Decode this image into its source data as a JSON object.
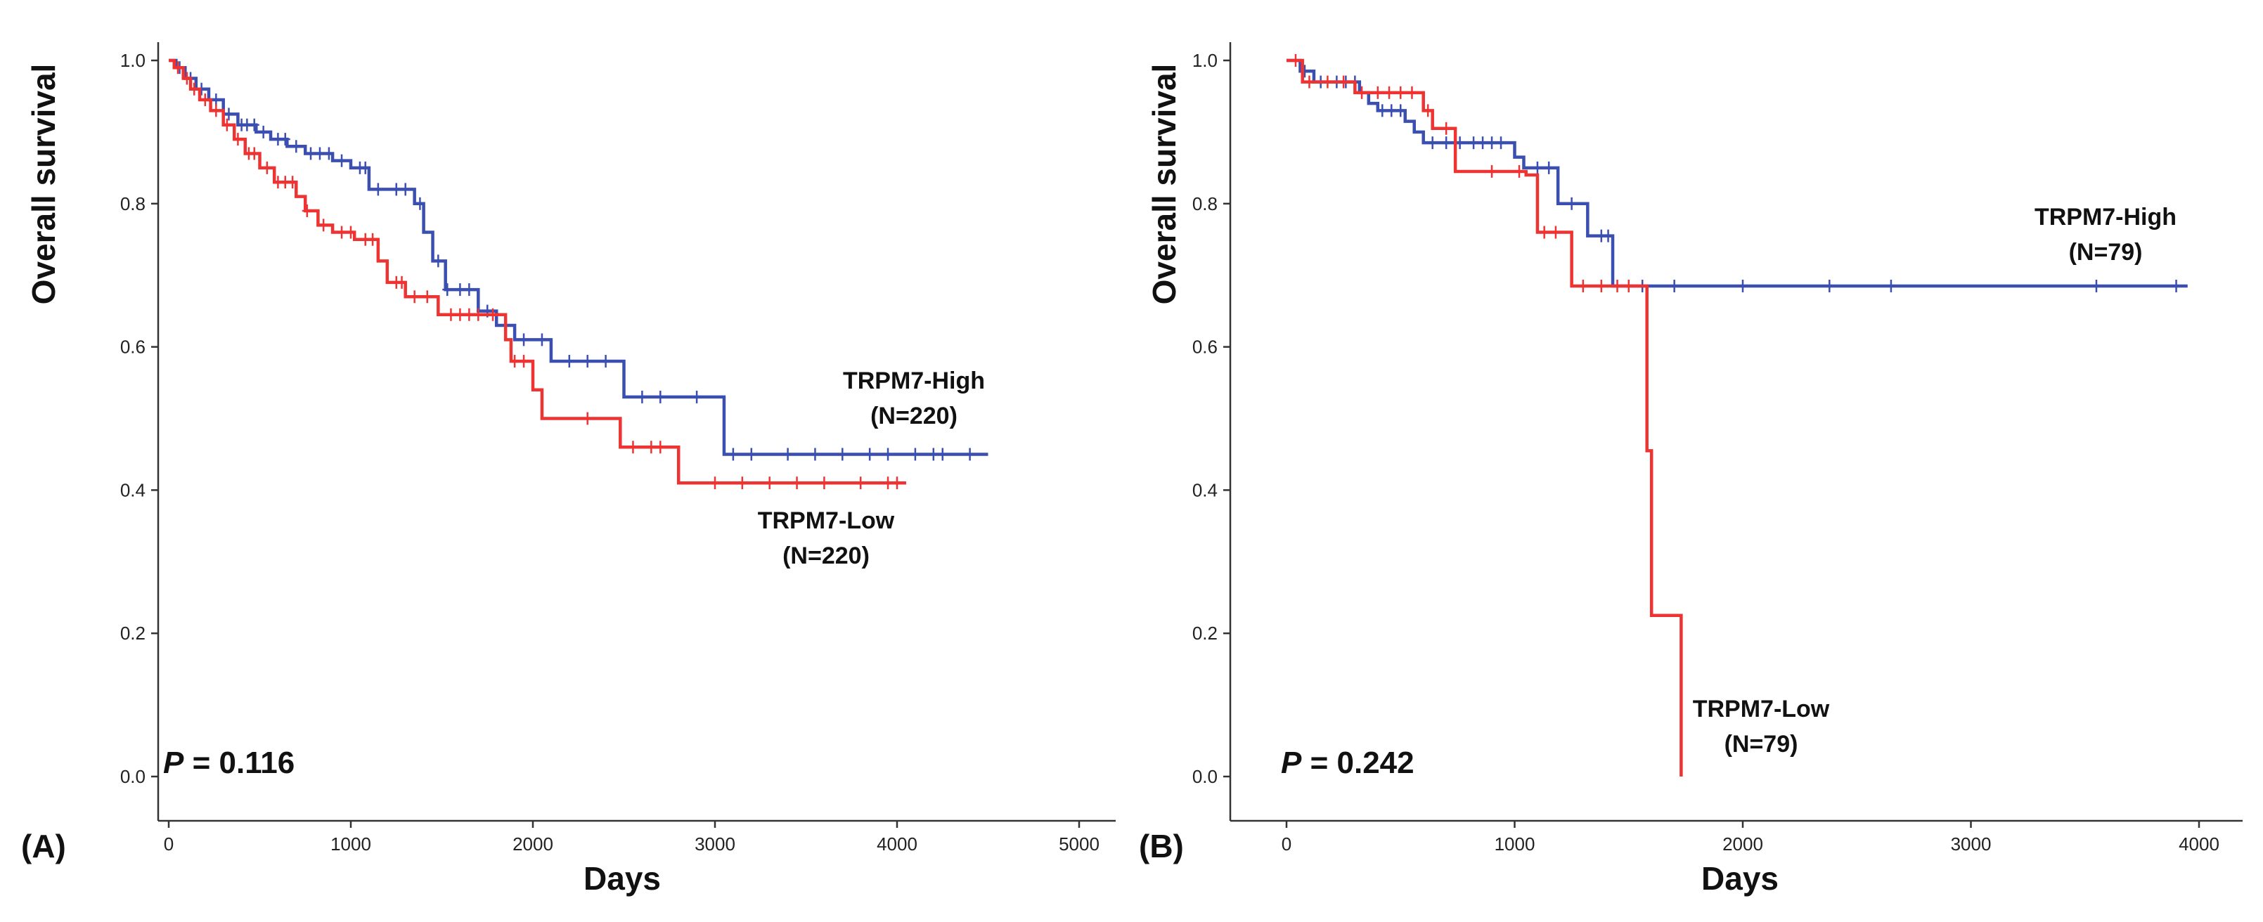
{
  "colors": {
    "high": "#3b4fb0",
    "low": "#ee3333",
    "axis": "#333333"
  },
  "chart_data": [
    {
      "type": "line",
      "panel_label": "(A)",
      "ylabel": "Overall survival",
      "xlabel": "Days",
      "xlim": [
        0,
        5000
      ],
      "ylim": [
        0,
        1
      ],
      "x_ticks": [
        "0",
        "1000",
        "2000",
        "3000",
        "4000",
        "5000"
      ],
      "y_ticks": [
        "0.0",
        "0.2",
        "0.4",
        "0.6",
        "0.8",
        "1.0"
      ],
      "p_prefix": "P",
      "p_text": " = 0.116",
      "series": [
        {
          "name": "TRPM7-High",
          "n_text": "(N=220)",
          "color_key": "high",
          "steps": [
            [
              0,
              1.0
            ],
            [
              40,
              0.99
            ],
            [
              90,
              0.975
            ],
            [
              150,
              0.96
            ],
            [
              220,
              0.945
            ],
            [
              300,
              0.925
            ],
            [
              380,
              0.91
            ],
            [
              480,
              0.9
            ],
            [
              560,
              0.89
            ],
            [
              650,
              0.88
            ],
            [
              750,
              0.87
            ],
            [
              900,
              0.86
            ],
            [
              1000,
              0.85
            ],
            [
              1100,
              0.82
            ],
            [
              1350,
              0.8
            ],
            [
              1400,
              0.76
            ],
            [
              1450,
              0.72
            ],
            [
              1520,
              0.68
            ],
            [
              1700,
              0.65
            ],
            [
              1800,
              0.63
            ],
            [
              1900,
              0.61
            ],
            [
              2100,
              0.58
            ],
            [
              2500,
              0.53
            ],
            [
              3050,
              0.45
            ],
            [
              4500,
              0.45
            ]
          ],
          "censors": [
            60,
            120,
            180,
            260,
            330,
            400,
            430,
            470,
            520,
            600,
            640,
            700,
            780,
            830,
            880,
            950,
            1050,
            1080,
            1150,
            1250,
            1300,
            1380,
            1480,
            1530,
            1600,
            1650,
            1750,
            1850,
            1950,
            2050,
            2200,
            2300,
            2400,
            2600,
            2700,
            2900,
            3100,
            3200,
            3400,
            3550,
            3700,
            3850,
            3950,
            4100,
            4200,
            4250,
            4400
          ]
        },
        {
          "name": "TRPM7-Low",
          "n_text": "(N=220)",
          "color_key": "low",
          "steps": [
            [
              0,
              1.0
            ],
            [
              30,
              0.99
            ],
            [
              80,
              0.975
            ],
            [
              120,
              0.96
            ],
            [
              170,
              0.945
            ],
            [
              230,
              0.93
            ],
            [
              300,
              0.91
            ],
            [
              360,
              0.89
            ],
            [
              420,
              0.87
            ],
            [
              500,
              0.85
            ],
            [
              580,
              0.83
            ],
            [
              700,
              0.81
            ],
            [
              750,
              0.79
            ],
            [
              820,
              0.77
            ],
            [
              900,
              0.76
            ],
            [
              1020,
              0.75
            ],
            [
              1150,
              0.72
            ],
            [
              1200,
              0.69
            ],
            [
              1300,
              0.67
            ],
            [
              1480,
              0.645
            ],
            [
              1850,
              0.61
            ],
            [
              1880,
              0.58
            ],
            [
              2000,
              0.54
            ],
            [
              2050,
              0.5
            ],
            [
              2480,
              0.46
            ],
            [
              2800,
              0.41
            ],
            [
              4050,
              0.41
            ]
          ],
          "censors": [
            50,
            100,
            140,
            200,
            260,
            320,
            380,
            440,
            470,
            540,
            600,
            640,
            680,
            760,
            850,
            950,
            1000,
            1080,
            1120,
            1250,
            1280,
            1350,
            1420,
            1550,
            1600,
            1650,
            1700,
            1780,
            1900,
            1950,
            2300,
            2550,
            2650,
            2700,
            3000,
            3150,
            3300,
            3450,
            3600,
            3800,
            3950,
            4000
          ]
        }
      ]
    },
    {
      "type": "line",
      "panel_label": "(B)",
      "ylabel": "Overall survival",
      "xlabel": "Days",
      "xlim": [
        0,
        4000
      ],
      "ylim": [
        0,
        1
      ],
      "x_ticks": [
        "0",
        "1000",
        "2000",
        "3000",
        "4000"
      ],
      "y_ticks": [
        "0.0",
        "0.2",
        "0.4",
        "0.6",
        "0.8",
        "1.0"
      ],
      "p_prefix": "P",
      "p_text": " = 0.242",
      "series": [
        {
          "name": "TRPM7-High",
          "n_text": "(N=79)",
          "color_key": "high",
          "steps": [
            [
              0,
              1.0
            ],
            [
              60,
              0.985
            ],
            [
              120,
              0.97
            ],
            [
              320,
              0.955
            ],
            [
              360,
              0.94
            ],
            [
              400,
              0.93
            ],
            [
              520,
              0.915
            ],
            [
              560,
              0.9
            ],
            [
              600,
              0.885
            ],
            [
              700,
              0.885
            ],
            [
              1000,
              0.865
            ],
            [
              1040,
              0.85
            ],
            [
              1190,
              0.8
            ],
            [
              1320,
              0.755
            ],
            [
              1430,
              0.685
            ],
            [
              3950,
              0.685
            ]
          ],
          "censors": [
            80,
            150,
            220,
            260,
            300,
            420,
            460,
            500,
            640,
            700,
            760,
            820,
            860,
            900,
            940,
            1100,
            1150,
            1250,
            1380,
            1410,
            1500,
            1560,
            1700,
            2000,
            2380,
            2650,
            3550,
            3900
          ]
        },
        {
          "name": "TRPM7-Low",
          "n_text": "(N=79)",
          "color_key": "low",
          "steps": [
            [
              0,
              1.0
            ],
            [
              70,
              0.97
            ],
            [
              300,
              0.955
            ],
            [
              600,
              0.93
            ],
            [
              640,
              0.905
            ],
            [
              740,
              0.845
            ],
            [
              1050,
              0.84
            ],
            [
              1100,
              0.76
            ],
            [
              1250,
              0.685
            ],
            [
              1560,
              0.685
            ],
            [
              1580,
              0.455
            ],
            [
              1600,
              0.225
            ],
            [
              1730,
              0.225
            ],
            [
              1730,
              0.0
            ]
          ],
          "censors": [
            40,
            100,
            180,
            250,
            330,
            400,
            450,
            500,
            550,
            620,
            700,
            900,
            1020,
            1130,
            1180,
            1300,
            1380,
            1450,
            1500
          ]
        }
      ]
    }
  ]
}
